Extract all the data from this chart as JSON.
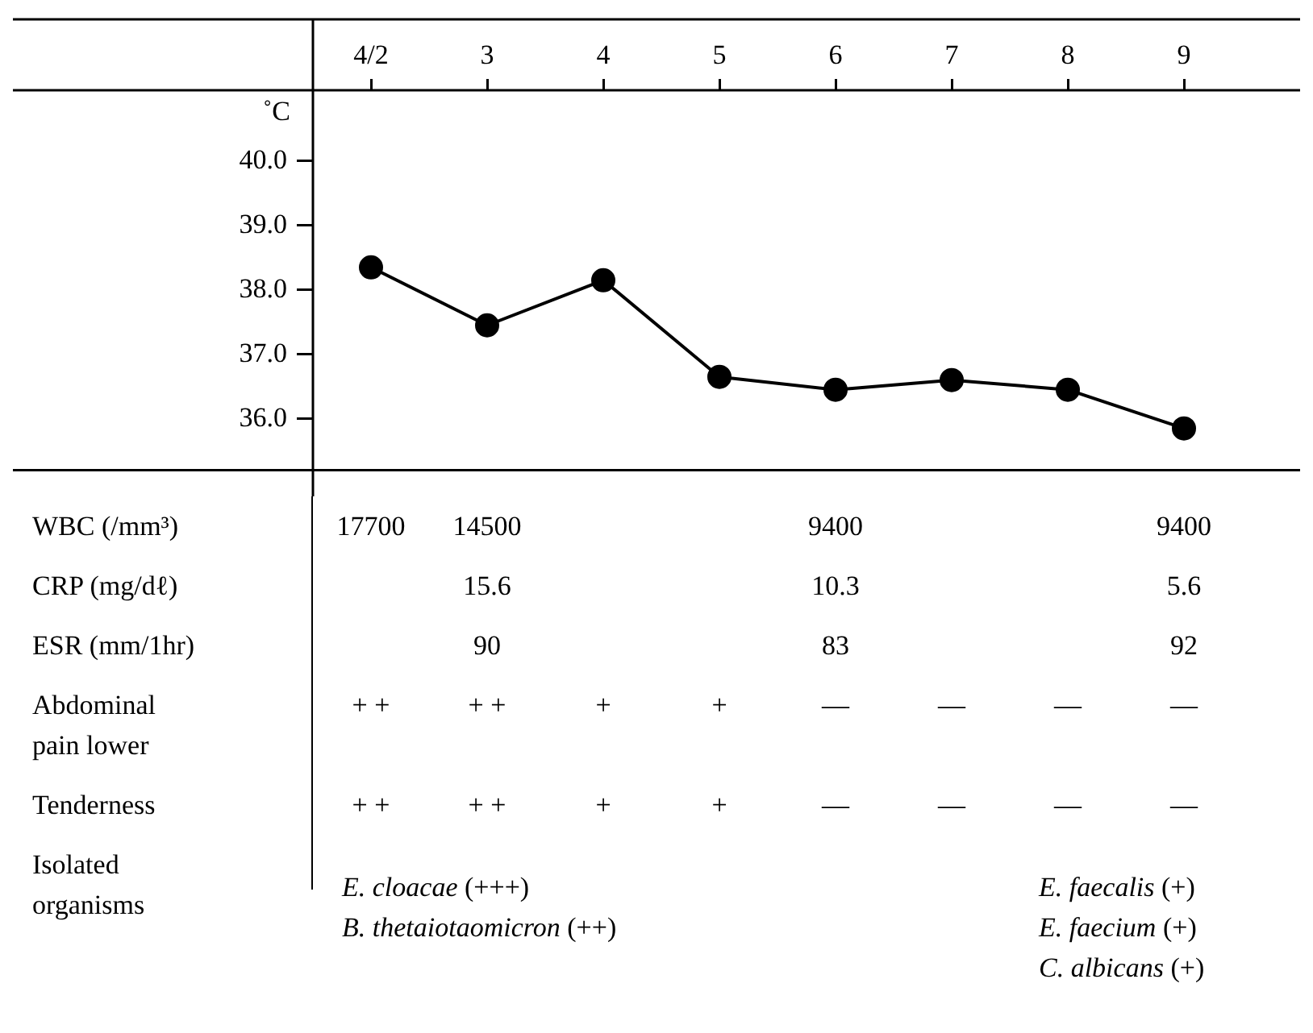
{
  "chart_data": [
    {
      "type": "line",
      "ylabel": "˚C",
      "categories": [
        "4/2",
        "3",
        "4",
        "5",
        "6",
        "7",
        "8",
        "9"
      ],
      "series": [
        {
          "color": "#000000",
          "values": [
            38.35,
            37.45,
            38.15,
            36.65,
            36.45,
            36.6,
            36.45,
            35.85
          ]
        }
      ],
      "ylim": [
        35.2,
        41.1
      ],
      "yticks": [
        {
          "value": 36,
          "label": "36.0"
        },
        {
          "value": 37,
          "label": "37.0"
        },
        {
          "value": 38,
          "label": "38.0"
        },
        {
          "value": 39,
          "label": "39.0"
        },
        {
          "value": 40,
          "label": "40.0"
        }
      ],
      "grid": false,
      "legend": false,
      "marker": "circle",
      "line_style": "solid"
    },
    {
      "type": "other",
      "y_categories": [
        "WBC (/mm³)",
        "CRP (mg/dℓ)",
        "ESR (mm/1hr)",
        "Abdominal pain lower",
        "Tenderness",
        "Isolated organisms"
      ],
      "cell_labels": [
        [
          "17700",
          "14500",
          null,
          null,
          "9400",
          null,
          null,
          "9400"
        ],
        [
          null,
          "15.6",
          null,
          null,
          "10.3",
          null,
          null,
          "5.6"
        ],
        [
          null,
          "90",
          null,
          null,
          "83",
          null,
          null,
          "92"
        ],
        [
          "+ +",
          "+ +",
          "+",
          "+",
          "—",
          "—",
          "—",
          "—"
        ],
        [
          "+ +",
          "+ +",
          "+",
          "+",
          "—",
          "—",
          "—",
          "—"
        ],
        [
          "E. cloacae (+++)\nB. thetaiotaomicron (++)",
          null,
          null,
          null,
          null,
          null,
          "E. faecalis (+)\nE. faecium (+)\nC. albicans (+)",
          null
        ]
      ]
    }
  ]
}
